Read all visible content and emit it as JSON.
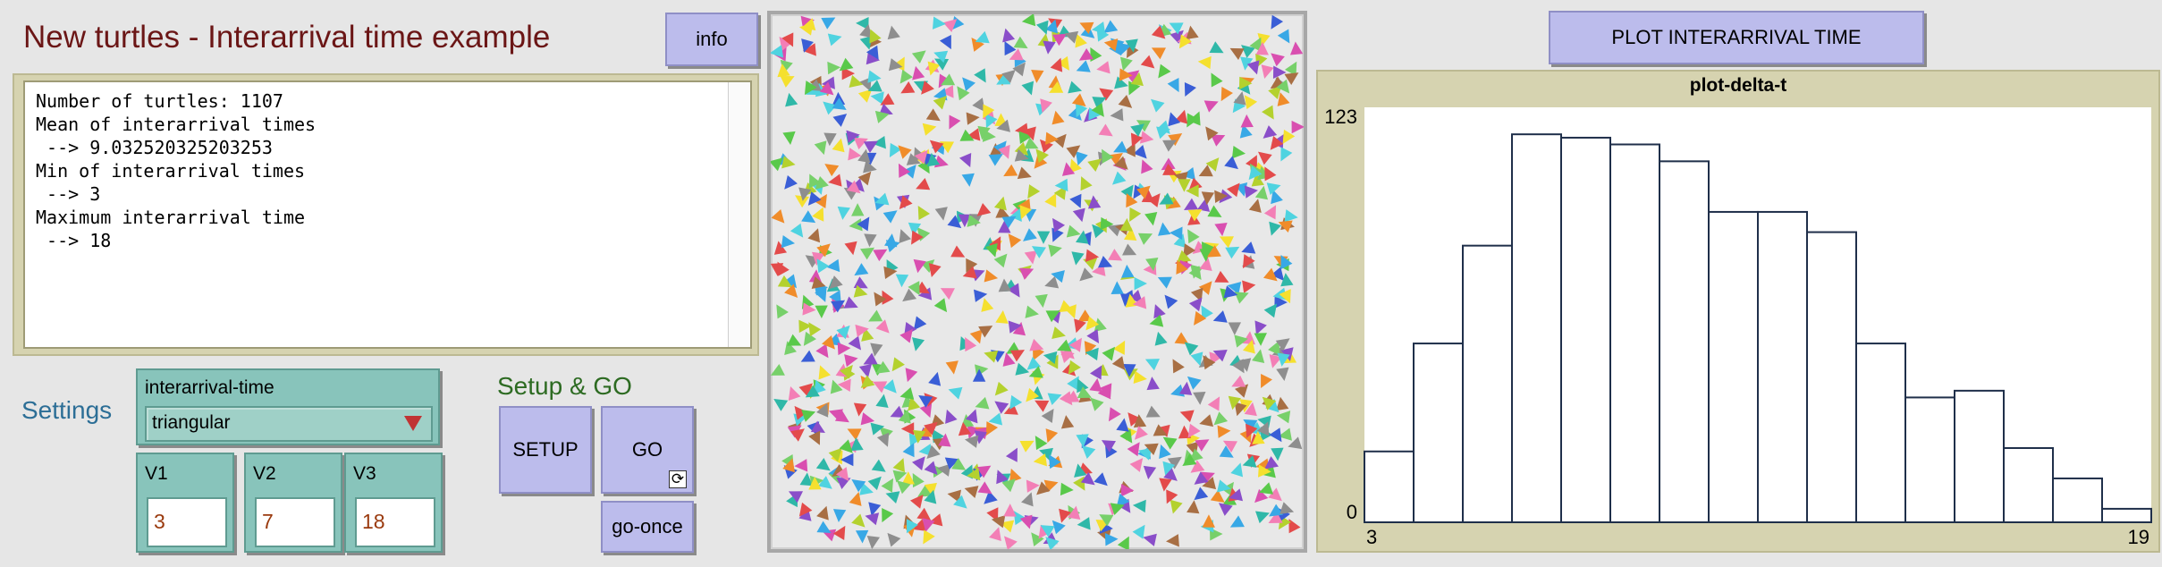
{
  "title": "New turtles - Interarrival time example",
  "buttons": {
    "info": "info",
    "plot": "PLOT INTERARRIVAL TIME",
    "setup": "SETUP",
    "go": "GO",
    "go_once": "go-once"
  },
  "output": {
    "lines": [
      "Number of turtles: 1107",
      "Mean of interarrival times",
      " --> 9.032520325203253",
      "Min of interarrival times",
      " --> 3",
      "Maximum interarrival time",
      " --> 18"
    ]
  },
  "settings": {
    "label": "Settings",
    "chooser": {
      "label": "interarrival-time",
      "value": "triangular"
    },
    "inputs": [
      {
        "label": "V1",
        "value": "3"
      },
      {
        "label": "V2",
        "value": "7"
      },
      {
        "label": "V3",
        "value": "18"
      }
    ]
  },
  "setup_go_label": "Setup & GO",
  "chart_data": {
    "type": "bar",
    "title": "plot-delta-t",
    "xlabel": "",
    "ylabel": "",
    "xlim": [
      3,
      19
    ],
    "ylim": [
      0,
      123
    ],
    "x_tick_labels": [
      "3",
      "19"
    ],
    "y_tick_labels": [
      "0",
      "123"
    ],
    "bin_width": 1,
    "bins_start": [
      3,
      4,
      5,
      6,
      7,
      8,
      9,
      10,
      11,
      12,
      13,
      14,
      15,
      16,
      17,
      18
    ],
    "values": [
      21,
      53,
      82,
      115,
      114,
      112,
      107,
      92,
      92,
      86,
      53,
      37,
      39,
      22,
      13,
      4
    ],
    "grid": false,
    "legend": "none",
    "bar_fill": "#ffffff",
    "bar_stroke": "#1f2f4a"
  },
  "world": {
    "background": "#e8e8e8",
    "turtle_count": 1107,
    "turtle_colors": [
      "#e34b4b",
      "#f08c2a",
      "#f5e02e",
      "#59c94a",
      "#2fb8a8",
      "#38a8e6",
      "#3a5ed6",
      "#8a4ec9",
      "#d94fb0",
      "#f37fb6",
      "#8e8e8e",
      "#a86f44",
      "#77d06a",
      "#b4d12e",
      "#4fd3e0"
    ]
  }
}
